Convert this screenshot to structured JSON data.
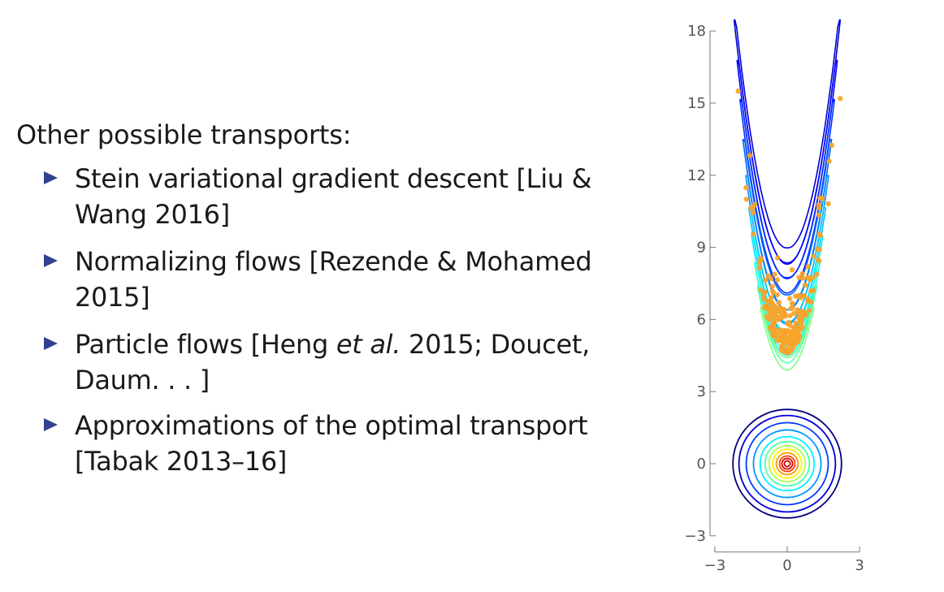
{
  "slide": {
    "heading": "Other possible transports:",
    "bullets": [
      {
        "line1": "Stein variational gradient descent [Liu &",
        "line2": "Wang 2016]"
      },
      {
        "line1": "Normalizing flows [Rezende & Mohamed",
        "line2": "2015]"
      },
      {
        "line1_pre": "Particle flows [Heng ",
        "line1_em": "et al.",
        "line1_post": " 2015; Doucet,",
        "line2": "Daum. . . ]"
      },
      {
        "line1": "Approximations of the optimal transport",
        "line2": "[Tabak 2013–16]"
      }
    ],
    "bullet_color": "#32428f"
  },
  "chart_data": {
    "type": "contour",
    "title": "",
    "xlabel": "",
    "ylabel": "",
    "xlim": [
      -3,
      3
    ],
    "ylim": [
      -3,
      18
    ],
    "x_ticks": [
      {
        "v": -3,
        "label": "−3"
      },
      {
        "v": 0,
        "label": "0"
      },
      {
        "v": 3,
        "label": "3"
      }
    ],
    "y_ticks": [
      {
        "v": -3,
        "label": "−3"
      },
      {
        "v": 0,
        "label": "0"
      },
      {
        "v": 3,
        "label": "3"
      },
      {
        "v": 6,
        "label": "6"
      },
      {
        "v": 9,
        "label": "9"
      },
      {
        "v": 12,
        "label": "12"
      },
      {
        "v": 15,
        "label": "15"
      },
      {
        "v": 18,
        "label": "18"
      }
    ],
    "grid": false,
    "colormap": "jet",
    "source_distribution": {
      "shape": "circles",
      "center": [
        0,
        0
      ],
      "radii": [
        0.12,
        0.22,
        0.32,
        0.45,
        0.6,
        0.75,
        0.92,
        1.12,
        1.4,
        1.7,
        2.0,
        2.25
      ]
    },
    "target_distribution": {
      "shape": "banana",
      "equation": "y = 2.1*x^2 + c",
      "x_range": [
        -2.2,
        2.2
      ],
      "levels_min_y": [
        8.3,
        7.7,
        7.1,
        6.4,
        5.8,
        5.3,
        4.9,
        4.5,
        4.2,
        3.9
      ]
    },
    "samples": {
      "color": "#f7a32a",
      "count": 230,
      "x_range": [
        -2.3,
        2.2
      ],
      "y_range": [
        3.5,
        15.5
      ]
    }
  }
}
